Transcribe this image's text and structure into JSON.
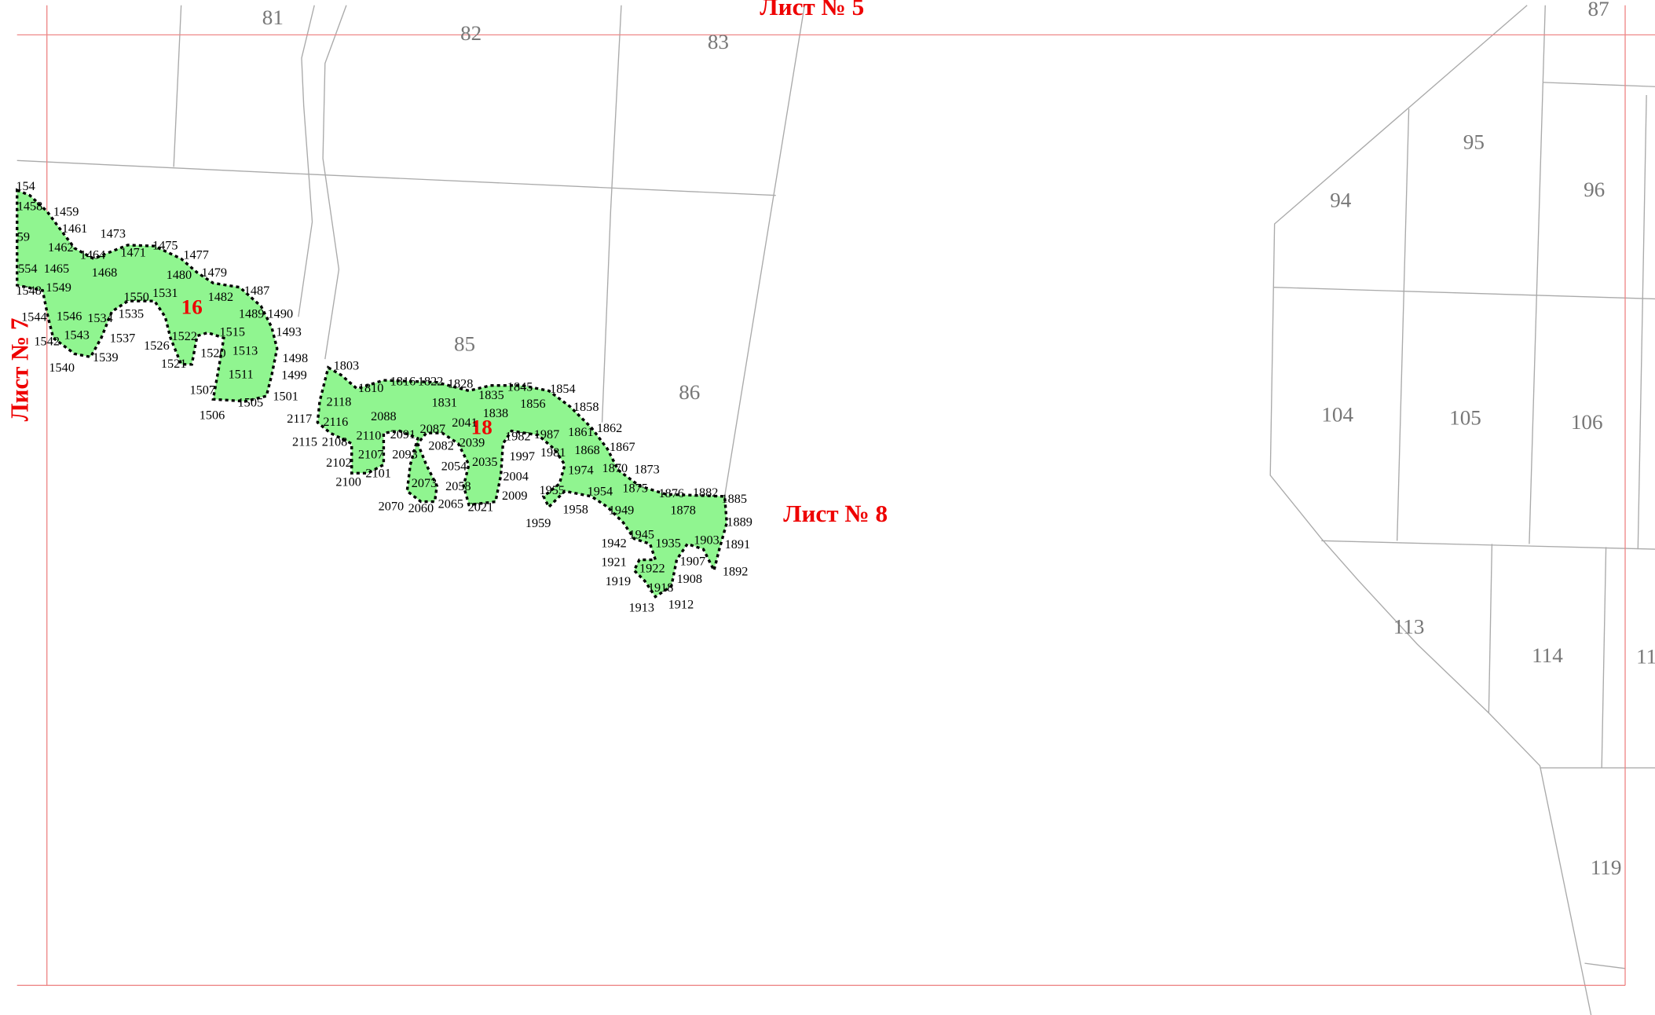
{
  "sheet_labels": [
    "Лист № 5",
    "Лист № 8",
    "Лист № 7"
  ],
  "parcels": [
    "81",
    "82",
    "83",
    "87",
    "95",
    "94",
    "96",
    "85",
    "86",
    "104",
    "105",
    "106",
    "113",
    "114",
    "11",
    "119"
  ],
  "zones": [
    "16",
    "18"
  ],
  "points": [
    "154",
    "1458",
    "1459",
    "1461",
    "59",
    "1462",
    "1473",
    "1475",
    "1477",
    "1464",
    "1471",
    "554",
    "1465",
    "1468",
    "1480",
    "1479",
    "1487",
    "1548",
    "1549",
    "1550",
    "1531",
    "1482",
    "1544",
    "1546",
    "1534",
    "1535",
    "1489",
    "1490",
    "1542",
    "1543",
    "1537",
    "1526",
    "1522",
    "1515",
    "1493",
    "1540",
    "1539",
    "1521",
    "1520",
    "1513",
    "1498",
    "1511",
    "1499",
    "1507",
    "1505",
    "1501",
    "1506",
    "1803",
    "1810",
    "1816",
    "1822",
    "1828",
    "1845",
    "1854",
    "1835",
    "1831",
    "1856",
    "1858",
    "2118",
    "1838",
    "2088",
    "2117",
    "2116",
    "2041",
    "1862",
    "2110",
    "2091",
    "2087",
    "1982",
    "1987",
    "1861",
    "2115",
    "2108",
    "2082",
    "2039",
    "1867",
    "2107",
    "2093",
    "1997",
    "1981",
    "1868",
    "2102",
    "2054",
    "2035",
    "1974",
    "1870",
    "1873",
    "2100",
    "2101",
    "2073",
    "2058",
    "2004",
    "1875",
    "1955",
    "1954",
    "1876",
    "1882",
    "1885",
    "2009",
    "2070",
    "2060",
    "2065",
    "2021",
    "1958",
    "1959",
    "1949",
    "1878",
    "1889",
    "1945",
    "1942",
    "1935",
    "1903",
    "1891",
    "1907",
    "1921",
    "1922",
    "1892",
    "1919",
    "1908",
    "1918",
    "1913",
    "1912"
  ]
}
